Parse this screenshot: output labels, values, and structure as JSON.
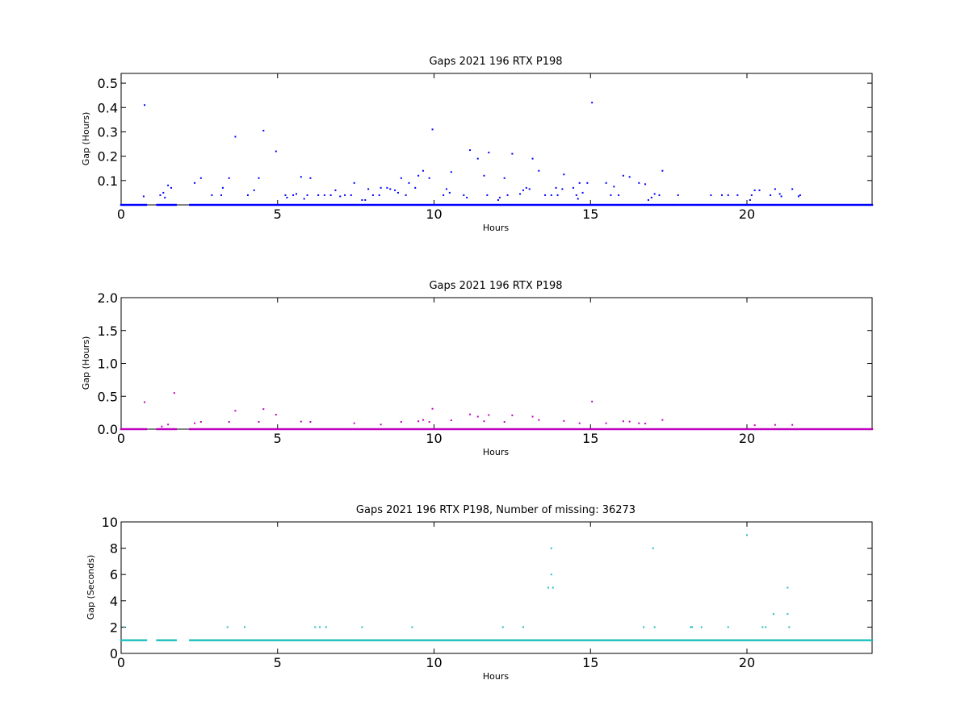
{
  "chart_data": [
    {
      "type": "scatter",
      "title": "Gaps 2021 196 RTX  P198",
      "xlabel": "Hours",
      "ylabel": "Gap (Hours)",
      "xlim": [
        0,
        24
      ],
      "ylim": [
        0,
        0.54
      ],
      "xticks": [
        0,
        5,
        10,
        15,
        20
      ],
      "yticks": [
        0.1,
        0.2,
        0.3,
        0.4,
        0.5
      ],
      "ytick_labels": [
        "0.1",
        "0.2",
        "0.3",
        "0.4",
        "0.5"
      ],
      "color": "#0000ff",
      "baseline": {
        "value": 0.0,
        "ranges": [
          [
            0,
            0.8
          ],
          [
            1.15,
            1.75
          ],
          [
            2.2,
            24
          ]
        ],
        "spacing": 0.05
      },
      "points": [
        [
          0.72,
          0.035
        ],
        [
          0.75,
          0.41
        ],
        [
          1.25,
          0.04
        ],
        [
          1.35,
          0.05
        ],
        [
          1.4,
          0.03
        ],
        [
          1.5,
          0.08
        ],
        [
          1.6,
          0.07
        ],
        [
          2.35,
          0.09
        ],
        [
          2.55,
          0.11
        ],
        [
          2.9,
          0.04
        ],
        [
          3.2,
          0.04
        ],
        [
          3.25,
          0.07
        ],
        [
          3.45,
          0.11
        ],
        [
          3.65,
          0.28
        ],
        [
          4.05,
          0.04
        ],
        [
          4.25,
          0.06
        ],
        [
          4.4,
          0.11
        ],
        [
          4.55,
          0.305
        ],
        [
          4.95,
          0.22
        ],
        [
          5.25,
          0.04
        ],
        [
          5.3,
          0.03
        ],
        [
          5.5,
          0.04
        ],
        [
          5.6,
          0.045
        ],
        [
          5.75,
          0.115
        ],
        [
          5.85,
          0.025
        ],
        [
          5.95,
          0.04
        ],
        [
          6.05,
          0.11
        ],
        [
          6.3,
          0.04
        ],
        [
          6.5,
          0.04
        ],
        [
          6.7,
          0.04
        ],
        [
          6.85,
          0.06
        ],
        [
          7.0,
          0.035
        ],
        [
          7.15,
          0.04
        ],
        [
          7.35,
          0.04
        ],
        [
          7.45,
          0.09
        ],
        [
          7.7,
          0.02
        ],
        [
          7.8,
          0.02
        ],
        [
          7.9,
          0.065
        ],
        [
          8.05,
          0.04
        ],
        [
          8.25,
          0.04
        ],
        [
          8.3,
          0.07
        ],
        [
          8.5,
          0.07
        ],
        [
          8.6,
          0.065
        ],
        [
          8.75,
          0.06
        ],
        [
          8.85,
          0.05
        ],
        [
          8.95,
          0.11
        ],
        [
          9.1,
          0.04
        ],
        [
          9.2,
          0.09
        ],
        [
          9.4,
          0.07
        ],
        [
          9.5,
          0.12
        ],
        [
          9.65,
          0.14
        ],
        [
          9.85,
          0.11
        ],
        [
          9.95,
          0.31
        ],
        [
          10.3,
          0.04
        ],
        [
          10.4,
          0.065
        ],
        [
          10.5,
          0.05
        ],
        [
          10.55,
          0.135
        ],
        [
          10.95,
          0.04
        ],
        [
          11.05,
          0.03
        ],
        [
          11.15,
          0.225
        ],
        [
          11.4,
          0.19
        ],
        [
          11.6,
          0.12
        ],
        [
          11.7,
          0.04
        ],
        [
          11.75,
          0.215
        ],
        [
          12.05,
          0.02
        ],
        [
          12.1,
          0.03
        ],
        [
          12.25,
          0.11
        ],
        [
          12.35,
          0.04
        ],
        [
          12.5,
          0.21
        ],
        [
          12.75,
          0.045
        ],
        [
          12.85,
          0.06
        ],
        [
          12.95,
          0.07
        ],
        [
          13.05,
          0.065
        ],
        [
          13.15,
          0.19
        ],
        [
          13.35,
          0.14
        ],
        [
          13.55,
          0.04
        ],
        [
          13.75,
          0.04
        ],
        [
          13.9,
          0.07
        ],
        [
          13.95,
          0.04
        ],
        [
          14.1,
          0.065
        ],
        [
          14.15,
          0.125
        ],
        [
          14.45,
          0.07
        ],
        [
          14.55,
          0.04
        ],
        [
          14.6,
          0.025
        ],
        [
          14.65,
          0.09
        ],
        [
          14.75,
          0.05
        ],
        [
          14.9,
          0.09
        ],
        [
          15.05,
          0.42
        ],
        [
          15.5,
          0.09
        ],
        [
          15.65,
          0.04
        ],
        [
          15.75,
          0.075
        ],
        [
          15.9,
          0.04
        ],
        [
          16.05,
          0.12
        ],
        [
          16.25,
          0.115
        ],
        [
          16.55,
          0.09
        ],
        [
          16.75,
          0.085
        ],
        [
          16.85,
          0.02
        ],
        [
          16.95,
          0.03
        ],
        [
          17.05,
          0.045
        ],
        [
          17.2,
          0.04
        ],
        [
          17.3,
          0.14
        ],
        [
          17.8,
          0.04
        ],
        [
          18.85,
          0.04
        ],
        [
          19.2,
          0.04
        ],
        [
          19.4,
          0.04
        ],
        [
          19.7,
          0.04
        ],
        [
          20.1,
          0.02
        ],
        [
          20.15,
          0.04
        ],
        [
          20.25,
          0.06
        ],
        [
          20.4,
          0.06
        ],
        [
          20.75,
          0.04
        ],
        [
          20.9,
          0.065
        ],
        [
          21.05,
          0.045
        ],
        [
          21.1,
          0.035
        ],
        [
          21.45,
          0.065
        ],
        [
          21.65,
          0.035
        ],
        [
          21.7,
          0.04
        ]
      ]
    },
    {
      "type": "scatter",
      "title": "Gaps 2021 196 RTX  P198",
      "xlabel": "Hours",
      "ylabel": "Gap (Hours)",
      "xlim": [
        0,
        24
      ],
      "ylim": [
        0,
        2.0
      ],
      "xticks": [
        0,
        5,
        10,
        15,
        20
      ],
      "yticks": [
        0.0,
        0.5,
        1.0,
        1.5,
        2.0
      ],
      "ytick_labels": [
        "0.0",
        "0.5",
        "1.0",
        "1.5",
        "2.0"
      ],
      "color": "#bf00bf",
      "baseline": {
        "value": 0.0,
        "ranges": [
          [
            0,
            0.8
          ],
          [
            1.15,
            1.75
          ],
          [
            2.2,
            24
          ]
        ],
        "spacing": 0.05
      },
      "points": [
        [
          0.75,
          0.41
        ],
        [
          1.7,
          0.55
        ],
        [
          1.3,
          0.04
        ],
        [
          1.5,
          0.07
        ],
        [
          2.35,
          0.09
        ],
        [
          2.55,
          0.11
        ],
        [
          3.45,
          0.11
        ],
        [
          3.65,
          0.28
        ],
        [
          4.4,
          0.11
        ],
        [
          4.55,
          0.305
        ],
        [
          4.95,
          0.22
        ],
        [
          5.75,
          0.115
        ],
        [
          6.05,
          0.11
        ],
        [
          7.45,
          0.09
        ],
        [
          8.3,
          0.07
        ],
        [
          8.95,
          0.11
        ],
        [
          9.5,
          0.12
        ],
        [
          9.65,
          0.14
        ],
        [
          9.85,
          0.11
        ],
        [
          9.95,
          0.31
        ],
        [
          10.55,
          0.135
        ],
        [
          11.15,
          0.225
        ],
        [
          11.4,
          0.19
        ],
        [
          11.6,
          0.12
        ],
        [
          11.75,
          0.215
        ],
        [
          12.25,
          0.11
        ],
        [
          12.5,
          0.21
        ],
        [
          13.15,
          0.19
        ],
        [
          13.35,
          0.14
        ],
        [
          14.15,
          0.125
        ],
        [
          14.65,
          0.09
        ],
        [
          15.05,
          0.42
        ],
        [
          15.5,
          0.09
        ],
        [
          16.05,
          0.12
        ],
        [
          16.25,
          0.115
        ],
        [
          16.55,
          0.09
        ],
        [
          16.75,
          0.085
        ],
        [
          17.3,
          0.14
        ],
        [
          20.25,
          0.06
        ],
        [
          20.9,
          0.065
        ],
        [
          21.45,
          0.065
        ]
      ]
    },
    {
      "type": "scatter",
      "title": "Gaps 2021 196 RTX  P198, Number of missing: 36273",
      "xlabel": "Hours",
      "ylabel": "Gap (Seconds)",
      "xlim": [
        0,
        24
      ],
      "ylim": [
        0,
        10
      ],
      "xticks": [
        0,
        5,
        10,
        15,
        20
      ],
      "yticks": [
        0,
        2,
        4,
        6,
        8,
        10
      ],
      "ytick_labels": [
        "0",
        "2",
        "4",
        "6",
        "8",
        "10"
      ],
      "color": "#1fbfbf",
      "baseline": {
        "value": 1,
        "ranges": [
          [
            0,
            0.8
          ],
          [
            1.15,
            1.75
          ],
          [
            2.2,
            24
          ]
        ],
        "spacing": 0.05
      },
      "points": [
        [
          0.1,
          2
        ],
        [
          3.4,
          2
        ],
        [
          3.95,
          2
        ],
        [
          6.2,
          2
        ],
        [
          6.35,
          2
        ],
        [
          6.55,
          2
        ],
        [
          7.7,
          2
        ],
        [
          9.3,
          2
        ],
        [
          12.2,
          2
        ],
        [
          12.85,
          2
        ],
        [
          13.65,
          5
        ],
        [
          13.75,
          8
        ],
        [
          13.75,
          6
        ],
        [
          13.8,
          5
        ],
        [
          16.7,
          2
        ],
        [
          17.0,
          8
        ],
        [
          17.05,
          2
        ],
        [
          18.2,
          2
        ],
        [
          18.25,
          2
        ],
        [
          18.55,
          2
        ],
        [
          19.4,
          2
        ],
        [
          20.0,
          9
        ],
        [
          20.5,
          2
        ],
        [
          20.6,
          2
        ],
        [
          20.85,
          3
        ],
        [
          21.3,
          5
        ],
        [
          21.3,
          3
        ],
        [
          21.35,
          2
        ]
      ]
    }
  ]
}
